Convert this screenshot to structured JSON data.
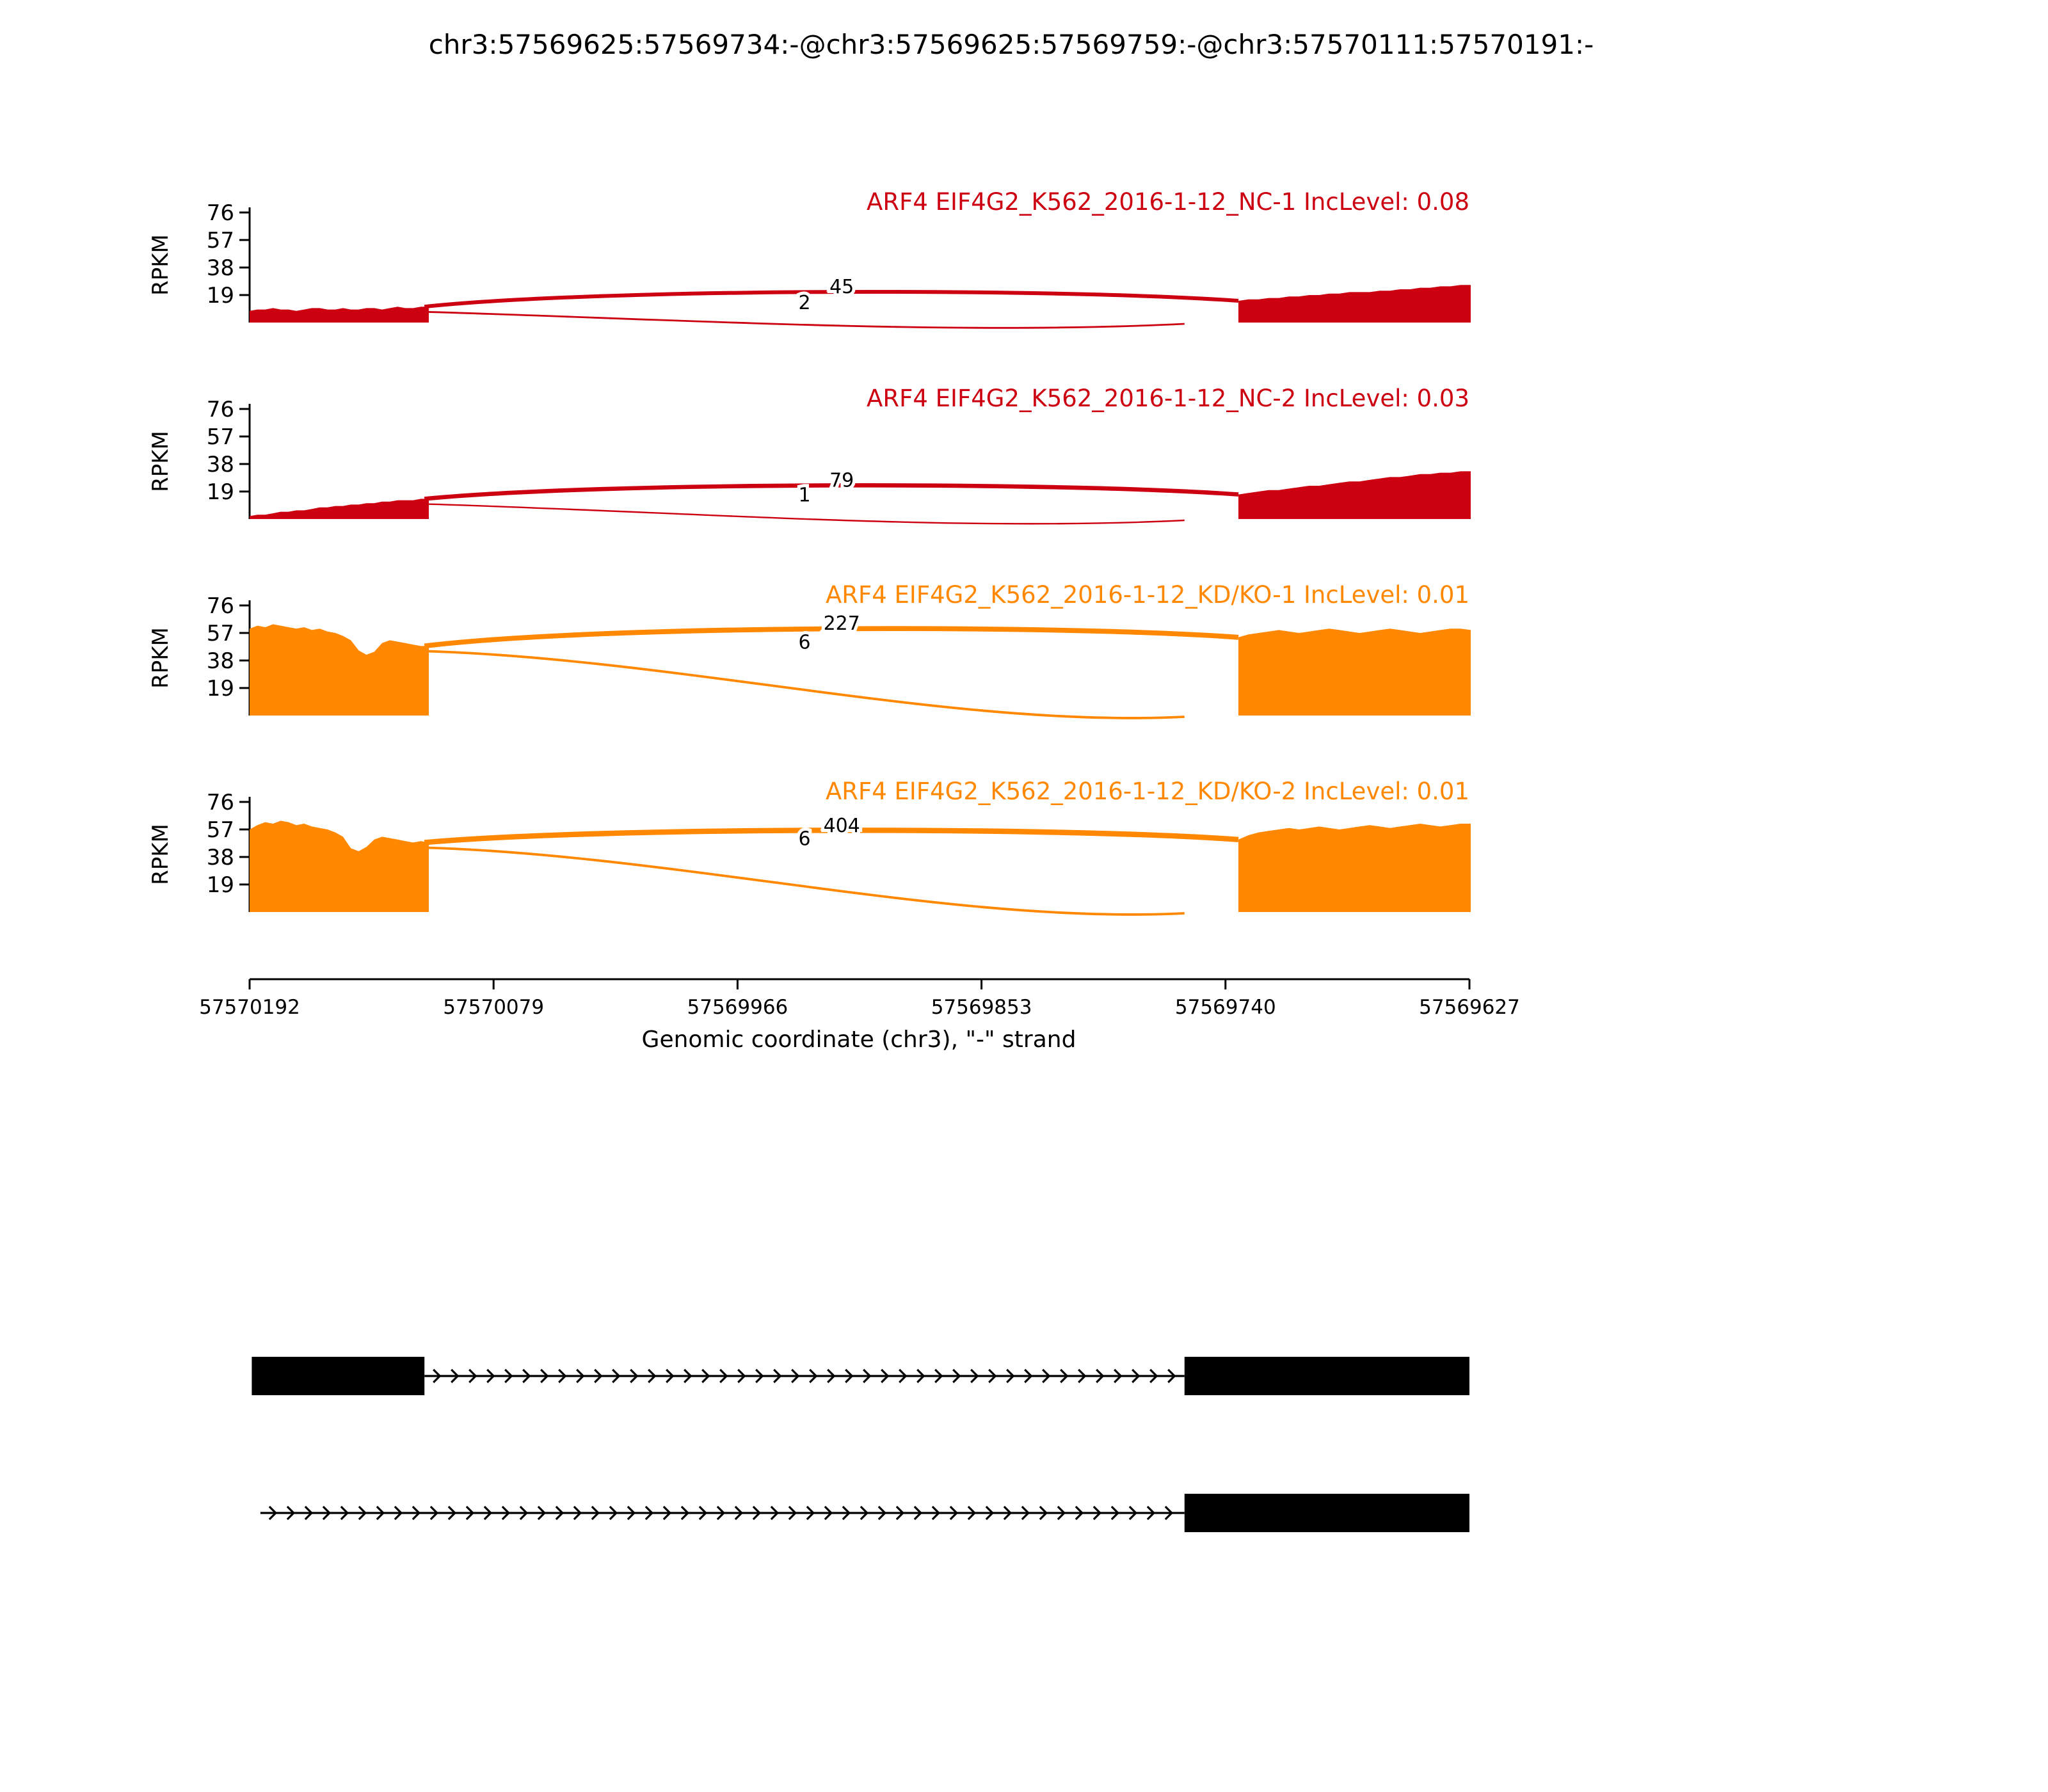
{
  "chart_data": {
    "type": "area",
    "subtype": "sashimi-plot",
    "title": "chr3:57569625:57569734:-@chr3:57569625:57569759:-@chr3:57570111:57570191:-",
    "ylabel": "RPKM",
    "yticks": [
      76,
      57,
      38,
      19
    ],
    "ylim": [
      0,
      86
    ],
    "xlabel": "Genomic coordinate (chr3), \"-\" strand",
    "xticks": [
      "57570192",
      "57570079",
      "57569966",
      "57569853",
      "57569740",
      "57569627"
    ],
    "x_genomic_range": [
      57570192,
      57569627
    ],
    "grid": false,
    "coverage_regions": {
      "left": {
        "g_from": 57570192,
        "g_to": 57570109
      },
      "right": {
        "g_from": 57569734,
        "g_to": 57569625
      }
    },
    "tracks": [
      {
        "label": "ARF4 EIF4G2_K562_2016-1-12_NC-1 IncLevel: 0.08",
        "sample": "NC-1",
        "inc_level": "0.08",
        "color": "#CC0011",
        "left_rpkm": [
          8,
          9,
          9,
          10,
          9,
          9,
          8,
          9,
          10,
          10,
          9,
          9,
          10,
          9,
          9,
          10,
          10,
          9,
          10,
          11,
          10,
          10,
          11,
          11
        ],
        "right_rpkm": [
          15,
          16,
          16,
          17,
          17,
          18,
          18,
          19,
          19,
          20,
          20,
          21,
          21,
          21,
          22,
          22,
          23,
          23,
          24,
          24,
          25,
          25,
          26,
          26
        ],
        "junctions": [
          {
            "from": 57570111,
            "to": 57569734,
            "count": 45,
            "kind": "skipping"
          },
          {
            "from": 57570111,
            "to": 57569759,
            "count": 2,
            "kind": "inclusion"
          }
        ]
      },
      {
        "label": "ARF4 EIF4G2_K562_2016-1-12_NC-2 IncLevel: 0.03",
        "sample": "NC-2",
        "inc_level": "0.03",
        "color": "#CC0011",
        "left_rpkm": [
          2,
          3,
          3,
          4,
          5,
          5,
          6,
          6,
          7,
          8,
          8,
          9,
          9,
          10,
          10,
          11,
          11,
          12,
          12,
          13,
          13,
          13,
          14,
          14
        ],
        "right_rpkm": [
          17,
          18,
          19,
          20,
          20,
          21,
          22,
          23,
          23,
          24,
          25,
          26,
          26,
          27,
          28,
          29,
          29,
          30,
          31,
          31,
          32,
          32,
          33,
          33
        ],
        "junctions": [
          {
            "from": 57570111,
            "to": 57569734,
            "count": 79,
            "kind": "skipping"
          },
          {
            "from": 57570111,
            "to": 57569759,
            "count": 1,
            "kind": "inclusion"
          }
        ]
      },
      {
        "label": "ARF4 EIF4G2_K562_2016-1-12_KD/KO-1 IncLevel: 0.01",
        "sample": "KD/KO-1",
        "inc_level": "0.01",
        "color": "#FF8800",
        "left_rpkm": [
          60,
          62,
          61,
          63,
          62,
          61,
          60,
          61,
          59,
          60,
          58,
          57,
          55,
          52,
          45,
          42,
          44,
          50,
          52,
          51,
          50,
          49,
          48,
          48
        ],
        "right_rpkm": [
          54,
          56,
          57,
          58,
          59,
          58,
          57,
          58,
          59,
          60,
          59,
          58,
          57,
          58,
          59,
          60,
          59,
          58,
          57,
          58,
          59,
          60,
          60,
          59
        ],
        "junctions": [
          {
            "from": 57570111,
            "to": 57569734,
            "count": 227,
            "kind": "skipping"
          },
          {
            "from": 57570111,
            "to": 57569759,
            "count": 6,
            "kind": "inclusion"
          }
        ]
      },
      {
        "label": "ARF4 EIF4G2_K562_2016-1-12_KD/KO-2 IncLevel: 0.01",
        "sample": "KD/KO-2",
        "inc_level": "0.01",
        "color": "#FF8800",
        "left_rpkm": [
          57,
          60,
          62,
          61,
          63,
          62,
          60,
          61,
          59,
          58,
          57,
          55,
          52,
          44,
          42,
          45,
          50,
          52,
          51,
          50,
          49,
          48,
          49,
          48
        ],
        "right_rpkm": [
          50,
          53,
          55,
          56,
          57,
          58,
          57,
          58,
          59,
          58,
          57,
          58,
          59,
          60,
          59,
          58,
          59,
          60,
          61,
          60,
          59,
          60,
          61,
          61
        ],
        "junctions": [
          {
            "from": 57570111,
            "to": 57569734,
            "count": 404,
            "kind": "skipping"
          },
          {
            "from": 57570111,
            "to": 57569759,
            "count": 6,
            "kind": "inclusion"
          }
        ]
      }
    ],
    "isoforms": [
      {
        "exons": [
          [
            57570191,
            57570111
          ],
          [
            57569759,
            57569625
          ]
        ]
      },
      {
        "exons": [
          [
            57569759,
            57569625
          ]
        ],
        "line_start": 57570187
      }
    ]
  }
}
